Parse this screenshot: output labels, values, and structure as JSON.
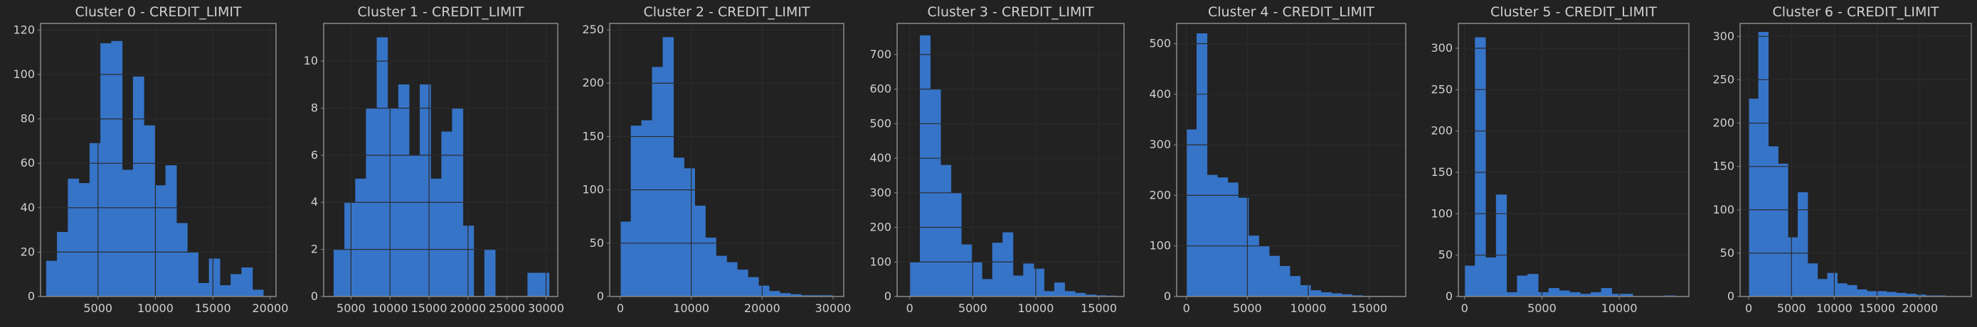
{
  "theme": {
    "background": "#222222",
    "axes_face": "#222222",
    "bar_color": "#3674c8",
    "bar_edge": "#1f1f1f",
    "spine_color": "#8a8a8a",
    "grid_color": "#3a3a3a",
    "text_color": "#d0d0d0",
    "title_color": "#d0d0d0"
  },
  "chart_data": [
    {
      "type": "bar",
      "title": "Cluster 0 - CREDIT_LIMIT",
      "grid": true,
      "xlim": [
        0,
        20500
      ],
      "ylim": [
        0,
        123
      ],
      "xticks": [
        5000,
        10000,
        15000,
        20000
      ],
      "yticks": [
        0,
        20,
        40,
        60,
        80,
        100,
        120
      ],
      "bin_start": 500,
      "bin_width": 945,
      "values": [
        16,
        29,
        53,
        51,
        69,
        114,
        115,
        57,
        99,
        77,
        50,
        59,
        33,
        20,
        6,
        17,
        5,
        10,
        13,
        3
      ]
    },
    {
      "type": "bar",
      "title": "Cluster 1 - CREDIT_LIMIT",
      "grid": true,
      "xlim": [
        1500,
        31500
      ],
      "ylim": [
        0,
        11.6
      ],
      "xticks": [
        5000,
        10000,
        15000,
        20000,
        25000,
        30000
      ],
      "yticks": [
        0,
        2,
        4,
        6,
        8,
        10
      ],
      "bin_start": 2800,
      "bin_width": 1380,
      "values": [
        2,
        4,
        5,
        8,
        11,
        8,
        9,
        6,
        9,
        5,
        7,
        8,
        3,
        0,
        2,
        0,
        0,
        0,
        1,
        1
      ]
    },
    {
      "type": "bar",
      "title": "Cluster 2 - CREDIT_LIMIT",
      "grid": true,
      "xlim": [
        -1500,
        31500
      ],
      "ylim": [
        0,
        256
      ],
      "xticks": [
        0,
        10000,
        20000,
        30000
      ],
      "yticks": [
        0,
        50,
        100,
        150,
        200,
        250
      ],
      "bin_start": 0,
      "bin_width": 1500,
      "values": [
        70,
        160,
        165,
        215,
        243,
        130,
        120,
        85,
        55,
        38,
        32,
        25,
        18,
        10,
        5,
        3,
        2,
        1,
        1,
        1
      ]
    },
    {
      "type": "bar",
      "title": "Cluster 3 - CREDIT_LIMIT",
      "grid": true,
      "xlim": [
        -1000,
        17000
      ],
      "ylim": [
        0,
        790
      ],
      "xticks": [
        0,
        5000,
        10000,
        15000
      ],
      "yticks": [
        0,
        100,
        200,
        300,
        400,
        500,
        600,
        700
      ],
      "bin_start": 0,
      "bin_width": 820,
      "values": [
        100,
        755,
        600,
        380,
        300,
        150,
        100,
        50,
        155,
        185,
        60,
        95,
        80,
        15,
        40,
        15,
        10,
        5,
        3,
        2
      ]
    },
    {
      "type": "bar",
      "title": "Cluster 4 - CREDIT_LIMIT",
      "grid": true,
      "xlim": [
        -800,
        18000
      ],
      "ylim": [
        0,
        540
      ],
      "xticks": [
        0,
        5000,
        10000,
        15000
      ],
      "yticks": [
        0,
        100,
        200,
        300,
        400,
        500
      ],
      "bin_start": 0,
      "bin_width": 850,
      "values": [
        330,
        520,
        240,
        235,
        225,
        195,
        120,
        100,
        80,
        60,
        40,
        22,
        12,
        8,
        6,
        4,
        2,
        1,
        1,
        1
      ]
    },
    {
      "type": "bar",
      "title": "Cluster 5 - CREDIT_LIMIT",
      "grid": true,
      "xlim": [
        -400,
        14500
      ],
      "ylim": [
        0,
        330
      ],
      "xticks": [
        0,
        5000,
        10000
      ],
      "yticks": [
        0,
        50,
        100,
        150,
        200,
        250,
        300
      ],
      "bin_start": 0,
      "bin_width": 680,
      "values": [
        37,
        313,
        47,
        123,
        5,
        25,
        27,
        5,
        10,
        7,
        5,
        3,
        5,
        10,
        3,
        3,
        0,
        0,
        0,
        1
      ]
    },
    {
      "type": "bar",
      "title": "Cluster 6 - CREDIT_LIMIT",
      "grid": true,
      "xlim": [
        -1000,
        26000
      ],
      "ylim": [
        0,
        315
      ],
      "xticks": [
        0,
        5000,
        10000,
        15000,
        20000
      ],
      "yticks": [
        0,
        50,
        100,
        150,
        200,
        250,
        300
      ],
      "bin_start": 0,
      "bin_width": 1150,
      "values": [
        228,
        305,
        173,
        153,
        68,
        120,
        38,
        20,
        27,
        15,
        13,
        8,
        6,
        6,
        5,
        4,
        3,
        2,
        1,
        1
      ]
    }
  ]
}
